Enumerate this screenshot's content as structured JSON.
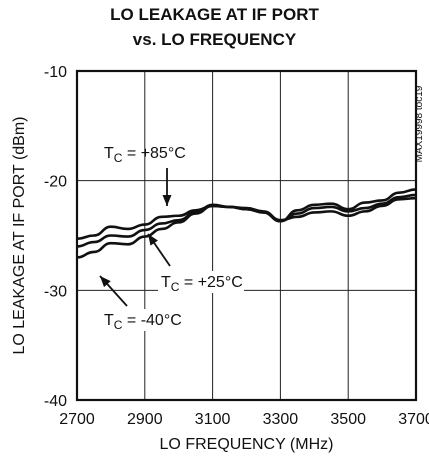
{
  "chart_data": {
    "type": "line",
    "title_line1": "LO LEAKAGE AT IF PORT",
    "title_line2": "vs. LO FREQUENCY",
    "xlabel": "LO FREQUENCY (MHz)",
    "ylabel": "LO LEAKAGE AT IF PORT (dBm)",
    "watermark": "MAX19998 toc19",
    "xlim": [
      2700,
      3700
    ],
    "ylim": [
      -40,
      -10
    ],
    "xticks": [
      2700,
      2900,
      3100,
      3300,
      3500,
      3700
    ],
    "yticks": [
      -10,
      -20,
      -30,
      -40
    ],
    "grid": true,
    "series": [
      {
        "name": "+85°C",
        "x": [
          2700,
          2750,
          2800,
          2850,
          2900,
          2950,
          3000,
          3050,
          3100,
          3150,
          3200,
          3250,
          3300,
          3350,
          3400,
          3450,
          3500,
          3550,
          3600,
          3650,
          3700
        ],
        "values": [
          -25.3,
          -25.0,
          -24.2,
          -24.4,
          -24.0,
          -23.3,
          -23.2,
          -22.7,
          -22.3,
          -22.4,
          -22.6,
          -22.9,
          -23.7,
          -22.7,
          -22.2,
          -22.1,
          -22.6,
          -22.0,
          -21.8,
          -21.1,
          -20.8
        ]
      },
      {
        "name": "+25°C",
        "x": [
          2700,
          2750,
          2800,
          2850,
          2900,
          2950,
          3000,
          3050,
          3100,
          3150,
          3200,
          3250,
          3300,
          3350,
          3400,
          3450,
          3500,
          3550,
          3600,
          3650,
          3700
        ],
        "values": [
          -26.0,
          -25.6,
          -25.0,
          -25.1,
          -24.5,
          -23.9,
          -23.6,
          -22.9,
          -22.2,
          -22.4,
          -22.6,
          -22.9,
          -23.7,
          -23.0,
          -22.5,
          -22.4,
          -22.8,
          -22.5,
          -22.1,
          -21.5,
          -21.3
        ]
      },
      {
        "name": "-40°C",
        "x": [
          2700,
          2750,
          2800,
          2850,
          2900,
          2950,
          3000,
          3050,
          3100,
          3150,
          3200,
          3250,
          3300,
          3350,
          3400,
          3450,
          3500,
          3550,
          3600,
          3650,
          3700
        ],
        "values": [
          -27.0,
          -26.5,
          -25.7,
          -25.8,
          -25.1,
          -24.4,
          -23.8,
          -23.0,
          -22.3,
          -22.4,
          -22.5,
          -22.8,
          -23.6,
          -23.3,
          -22.9,
          -22.8,
          -23.2,
          -22.8,
          -22.3,
          -21.7,
          -21.6
        ]
      }
    ],
    "annotations": [
      {
        "text": "T",
        "sub": "C",
        "rest": " = +85°C"
      },
      {
        "text": "T",
        "sub": "C",
        "rest": " = +25°C"
      },
      {
        "text": "T",
        "sub": "C",
        "rest": " = -40°C"
      }
    ]
  }
}
